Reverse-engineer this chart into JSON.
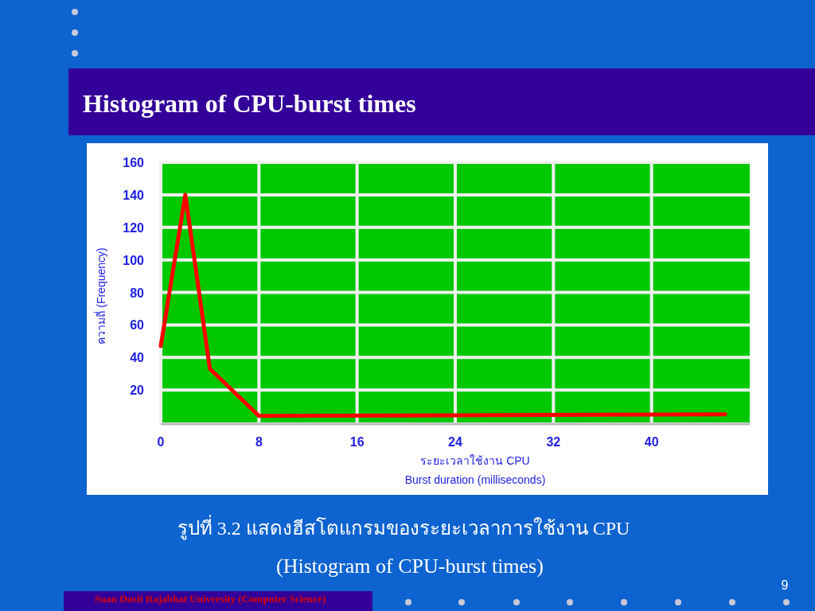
{
  "chart_data": {
    "type": "line",
    "title": "Histogram of CPU-burst times",
    "xlabel": "ระยะเวลาใช้งาน CPU\nBurst duration (milliseconds)",
    "ylabel": "ความถี่ (Frequency)",
    "series": [
      {
        "color": "#ff0000",
        "x": [
          0,
          2,
          4,
          8,
          46
        ],
        "values": [
          47,
          140,
          33,
          4,
          5
        ]
      }
    ],
    "xlim": [
      0,
      48
    ],
    "xticks": [
      0,
      8,
      16,
      24,
      32,
      40
    ],
    "ylim": [
      0,
      160
    ],
    "yticks": [
      20,
      40,
      60,
      80,
      100,
      120,
      140,
      160
    ],
    "grid": true,
    "annotations": [
      "รูปที่ 3.2  แสดงฮีสโตแกรมของระยะเวลาการใช้งาน CPU",
      "(Histogram of CPU-burst times)",
      "Suan Dusit Rajabhat University (Computer Science)",
      "9"
    ]
  }
}
